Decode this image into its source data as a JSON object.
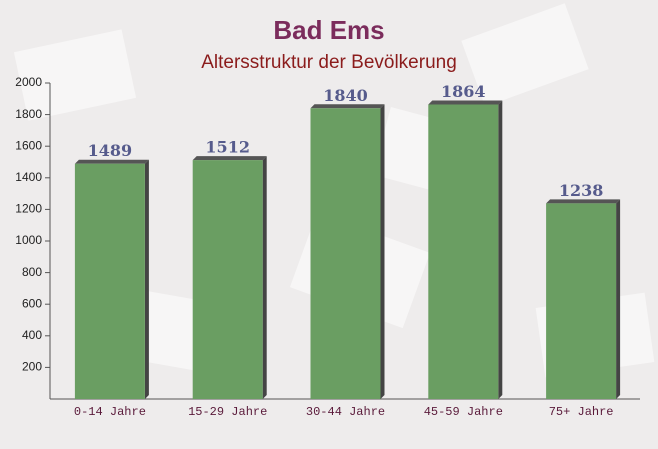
{
  "chart_data": {
    "type": "bar",
    "title": "Bad Ems",
    "subtitle": "Altersstruktur der Bevölkerung",
    "categories": [
      "0-14 Jahre",
      "15-29 Jahre",
      "30-44 Jahre",
      "45-59 Jahre",
      "75+ Jahre"
    ],
    "values": [
      1489,
      1512,
      1840,
      1864,
      1238
    ],
    "color": "#6a9e62",
    "ylim": [
      0,
      2000
    ],
    "yticks": [
      200,
      400,
      600,
      800,
      1000,
      1200,
      1400,
      1600,
      1800,
      2000
    ]
  }
}
